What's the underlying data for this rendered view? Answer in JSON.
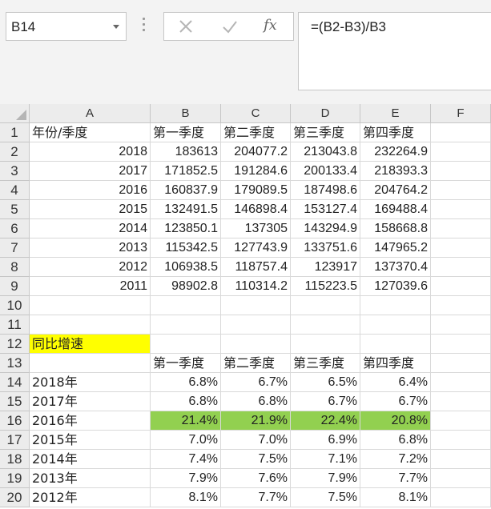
{
  "name_box": {
    "value": "B14"
  },
  "formula_bar": {
    "cancel_icon": "x-icon",
    "enter_icon": "check-icon",
    "fx_label": "fx",
    "formula": "=(B2-B3)/B3"
  },
  "columns": [
    "A",
    "B",
    "C",
    "D",
    "E",
    "F"
  ],
  "rows": [
    "1",
    "2",
    "3",
    "4",
    "5",
    "6",
    "7",
    "8",
    "9",
    "10",
    "11",
    "12",
    "13",
    "14",
    "15",
    "16",
    "17",
    "18",
    "19",
    "20"
  ],
  "cells": {
    "A1": "年份/季度",
    "B1": "第一季度",
    "C1": "第二季度",
    "D1": "第三季度",
    "E1": "第四季度",
    "A2": "2018",
    "B2": "183613",
    "C2": "204077.2",
    "D2": "213043.8",
    "E2": "232264.9",
    "A3": "2017",
    "B3": "171852.5",
    "C3": "191284.6",
    "D3": "200133.4",
    "E3": "218393.3",
    "A4": "2016",
    "B4": "160837.9",
    "C4": "179089.5",
    "D4": "187498.6",
    "E4": "204764.2",
    "A5": "2015",
    "B5": "132491.5",
    "C5": "146898.4",
    "D5": "153127.4",
    "E5": "169488.4",
    "A6": "2014",
    "B6": "123850.1",
    "C6": "137305",
    "D6": "143294.9",
    "E6": "158668.8",
    "A7": "2013",
    "B7": "115342.5",
    "C7": "127743.9",
    "D7": "133751.6",
    "E7": "147965.2",
    "A8": "2012",
    "B8": "106938.5",
    "C8": "118757.4",
    "D8": "123917",
    "E8": "137370.4",
    "A9": "2011",
    "B9": "98902.8",
    "C9": "110314.2",
    "D9": "115223.5",
    "E9": "127039.6",
    "A12": "同比增速",
    "B13": "第一季度",
    "C13": "第二季度",
    "D13": "第三季度",
    "E13": "第四季度",
    "A14": "2018年",
    "B14": "6.8%",
    "C14": "6.7%",
    "D14": "6.5%",
    "E14": "6.4%",
    "A15": "2017年",
    "B15": "6.8%",
    "C15": "6.8%",
    "D15": "6.7%",
    "E15": "6.7%",
    "A16": "2016年",
    "B16": "21.4%",
    "C16": "21.9%",
    "D16": "22.4%",
    "E16": "20.8%",
    "A17": "2015年",
    "B17": "7.0%",
    "C17": "7.0%",
    "D17": "6.9%",
    "E17": "6.8%",
    "A18": "2014年",
    "B18": "7.4%",
    "C18": "7.5%",
    "D18": "7.1%",
    "E18": "7.2%",
    "A19": "2013年",
    "B19": "7.9%",
    "C19": "7.6%",
    "D19": "7.9%",
    "E19": "7.7%",
    "A20": "2012年",
    "B20": "8.1%",
    "C20": "7.7%",
    "D20": "7.5%",
    "E20": "8.1%"
  },
  "styles": {
    "highlight_yellow": "#ffff00",
    "highlight_green": "#92d050",
    "yellow_cells": [
      "A12"
    ],
    "green_cells": [
      "B16",
      "C16",
      "D16",
      "E16"
    ]
  }
}
